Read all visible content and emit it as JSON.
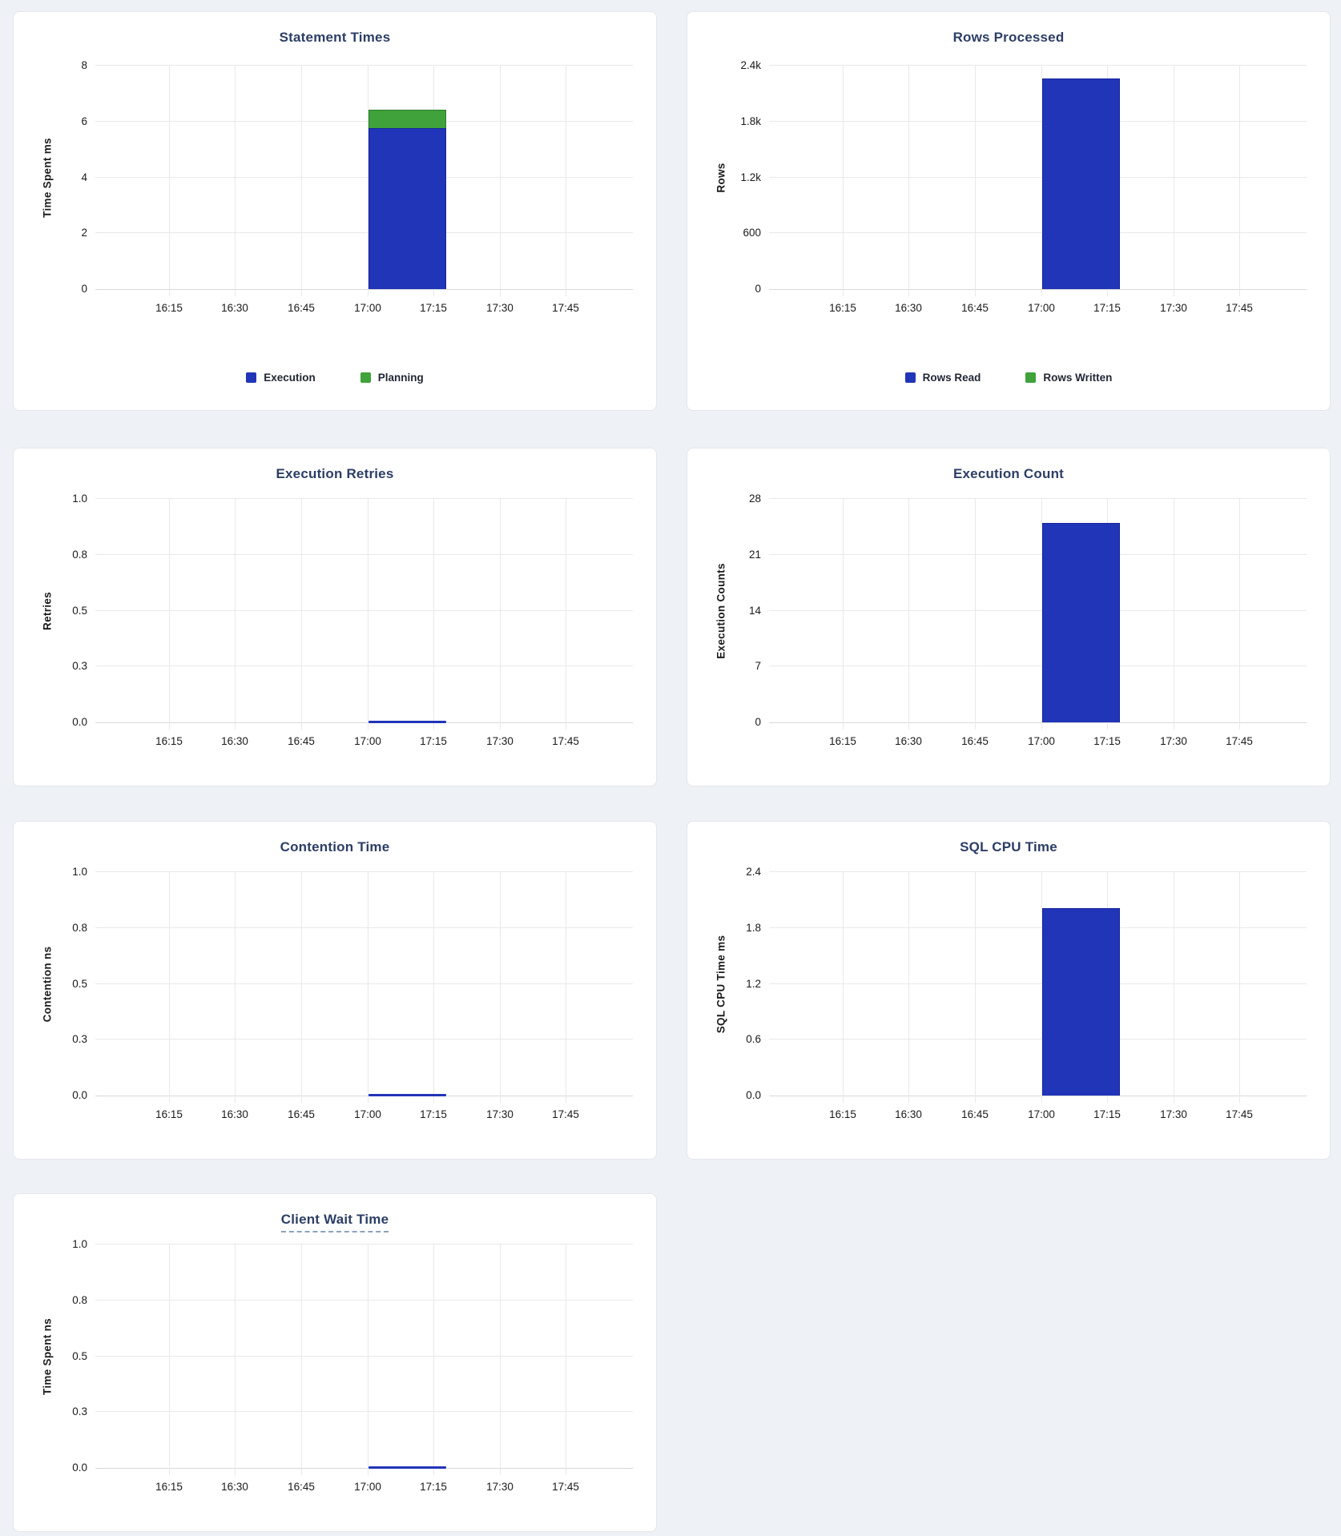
{
  "page": {
    "background": "#eef1f5"
  },
  "colors": {
    "bar_blue": "#2135b8",
    "bar_blue_border": "#16249b",
    "bar_green": "#3fa23a",
    "bar_green_border": "#2e7d2b",
    "title_text": "#2c3e66",
    "axis_text": "#1a1a1a",
    "grid_line": "#e9e9e9",
    "panel_background": "#ffffff",
    "panel_border": "#e3e7ec"
  },
  "time_axis": {
    "domain_start": "16:00",
    "domain_end": "18:00",
    "ticks": [
      "16:15",
      "16:30",
      "16:45",
      "17:00",
      "17:15",
      "17:30",
      "17:45"
    ],
    "bucket": {
      "start": "17:00",
      "end": "17:15"
    }
  },
  "chart_data": [
    {
      "type": "bar",
      "title": "Statement Times",
      "ylabel": "Time Spent ms",
      "ylim": [
        0,
        8
      ],
      "yticks": [
        "0",
        "2",
        "4",
        "6",
        "8"
      ],
      "x": [
        "17:00"
      ],
      "series": [
        {
          "name": "Execution",
          "color": "blue",
          "values": [
            5.75
          ]
        },
        {
          "name": "Planning",
          "color": "green",
          "values": [
            0.67
          ]
        }
      ],
      "legend": {
        "visible": true,
        "position": "bottom",
        "items": [
          "Execution",
          "Planning"
        ]
      },
      "grid": true
    },
    {
      "type": "bar",
      "title": "Rows Processed",
      "ylabel": "Rows",
      "ylim": [
        0,
        2400
      ],
      "yticks": [
        "0",
        "600",
        "1.2k",
        "1.8k",
        "2.4k"
      ],
      "x": [
        "17:00"
      ],
      "series": [
        {
          "name": "Rows Read",
          "color": "blue",
          "values": [
            2260
          ]
        },
        {
          "name": "Rows Written",
          "color": "green",
          "values": [
            0
          ]
        }
      ],
      "legend": {
        "visible": true,
        "position": "bottom",
        "items": [
          "Rows Read",
          "Rows Written"
        ]
      },
      "grid": true
    },
    {
      "type": "bar",
      "title": "Execution Retries",
      "ylabel": "Retries",
      "ylim": [
        0,
        1
      ],
      "yticks": [
        "0.0",
        "0.3",
        "0.5",
        "0.8",
        "1.0"
      ],
      "x": [
        "17:00"
      ],
      "series": [
        {
          "name": "Retries",
          "color": "blue",
          "values": [
            0
          ]
        }
      ],
      "legend": {
        "visible": false,
        "items": []
      },
      "grid": true
    },
    {
      "type": "bar",
      "title": "Execution Count",
      "ylabel": "Execution Counts",
      "ylim": [
        0,
        28
      ],
      "yticks": [
        "0",
        "7",
        "14",
        "21",
        "28"
      ],
      "x": [
        "17:00"
      ],
      "series": [
        {
          "name": "Execution Count",
          "color": "blue",
          "values": [
            25
          ]
        }
      ],
      "legend": {
        "visible": false,
        "items": []
      },
      "grid": true
    },
    {
      "type": "bar",
      "title": "Contention Time",
      "ylabel": "Contention ns",
      "ylim": [
        0,
        1
      ],
      "yticks": [
        "0.0",
        "0.3",
        "0.5",
        "0.8",
        "1.0"
      ],
      "x": [
        "17:00"
      ],
      "series": [
        {
          "name": "Contention",
          "color": "blue",
          "values": [
            0
          ]
        }
      ],
      "legend": {
        "visible": false,
        "items": []
      },
      "grid": true
    },
    {
      "type": "bar",
      "title": "SQL CPU Time",
      "ylabel": "SQL CPU Time ms",
      "ylim": [
        0,
        2.4
      ],
      "yticks": [
        "0.0",
        "0.6",
        "1.2",
        "1.8",
        "2.4"
      ],
      "x": [
        "17:00"
      ],
      "series": [
        {
          "name": "SQL CPU Time",
          "color": "blue",
          "values": [
            2.01
          ]
        }
      ],
      "legend": {
        "visible": false,
        "items": []
      },
      "grid": true
    },
    {
      "type": "bar",
      "title": "Client Wait Time",
      "title_underlined": true,
      "ylabel": "Time Spent ns",
      "ylim": [
        0,
        1
      ],
      "yticks": [
        "0.0",
        "0.3",
        "0.5",
        "0.8",
        "1.0"
      ],
      "x": [
        "17:00"
      ],
      "series": [
        {
          "name": "Client Wait",
          "color": "blue",
          "values": [
            0
          ]
        }
      ],
      "legend": {
        "visible": false,
        "items": []
      },
      "grid": true
    }
  ]
}
